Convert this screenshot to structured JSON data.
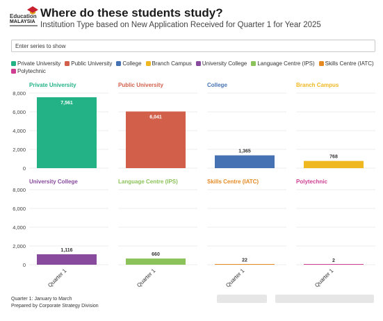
{
  "logo": {
    "line1": "Education",
    "line2": "MALAYSIA"
  },
  "header": {
    "title": "Where do these students study?",
    "subtitle": "Institution Type based on New Application Received for Quarter 1 for Year 2025"
  },
  "search": {
    "placeholder": "Enter series to show"
  },
  "footer": {
    "note": "Quarter 1: January to March",
    "credit": "Prepared by Corporate Strategy Division"
  },
  "chart_data": {
    "type": "bar",
    "layout": "small-multiples",
    "categories": [
      "Quarter 1"
    ],
    "ylim": [
      0,
      8000
    ],
    "yticks": [
      0,
      2000,
      4000,
      6000,
      8000
    ],
    "ytick_labels": [
      "0",
      "2,000",
      "4,000",
      "6,000",
      "8,000"
    ],
    "grid": true,
    "legend_position": "top",
    "series": [
      {
        "name": "Private University",
        "color": "#22b286",
        "values": [
          7561
        ],
        "label": "7,561"
      },
      {
        "name": "Public University",
        "color": "#d15f4a",
        "values": [
          6041
        ],
        "label": "6,041"
      },
      {
        "name": "College",
        "color": "#4672b4",
        "values": [
          1365
        ],
        "label": "1,365"
      },
      {
        "name": "Branch Campus",
        "color": "#f0b820",
        "values": [
          768
        ],
        "label": "768"
      },
      {
        "name": "University College",
        "color": "#874a9c",
        "values": [
          1116
        ],
        "label": "1,116"
      },
      {
        "name": "Language Centre (IPS)",
        "color": "#8cc25a",
        "values": [
          660
        ],
        "label": "660"
      },
      {
        "name": "Skills Centre (IATC)",
        "color": "#e58a23",
        "values": [
          22
        ],
        "label": "22"
      },
      {
        "name": "Polytechnic",
        "color": "#cf3e92",
        "values": [
          2
        ],
        "label": "2"
      }
    ]
  }
}
